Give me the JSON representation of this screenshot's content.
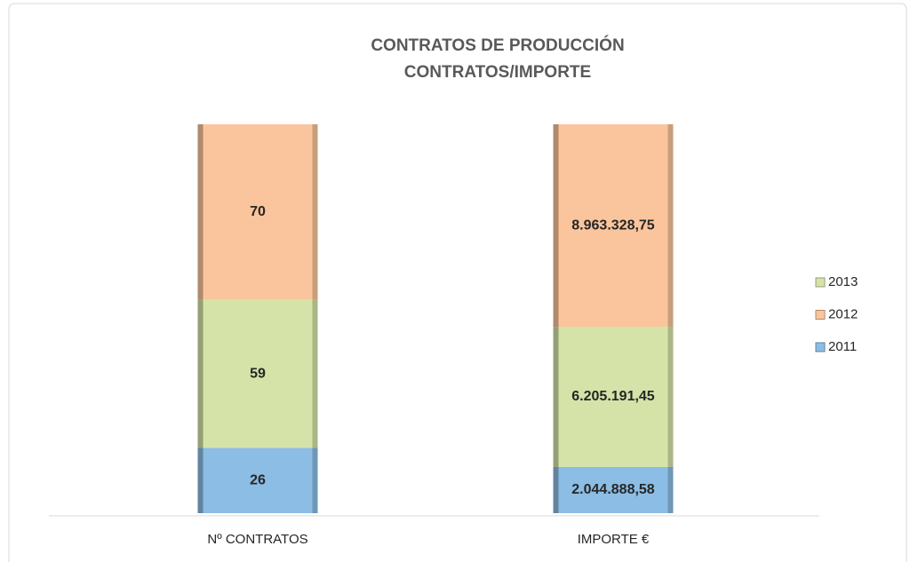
{
  "chart_data": {
    "type": "stacked_bar_100",
    "title": [
      "CONTRATOS DE PRODUCCIÓN",
      "CONTRATOS/IMPORTE"
    ],
    "categories": [
      "Nº CONTRATOS",
      "IMPORTE €"
    ],
    "series": [
      {
        "name": "2011",
        "color": "#8cbde4",
        "values": [
          26,
          2044888.58
        ],
        "value_labels": [
          "26",
          "2.044.888,58"
        ]
      },
      {
        "name": "2013",
        "color": "#d5e3a8",
        "values": [
          59,
          6205191.45
        ],
        "value_labels": [
          "59",
          "6.205.191,45"
        ]
      },
      {
        "name": "2012",
        "color": "#fac59c",
        "values": [
          70,
          8963328.75
        ],
        "value_labels": [
          "70",
          "8.963.328,75"
        ]
      }
    ]
  }
}
